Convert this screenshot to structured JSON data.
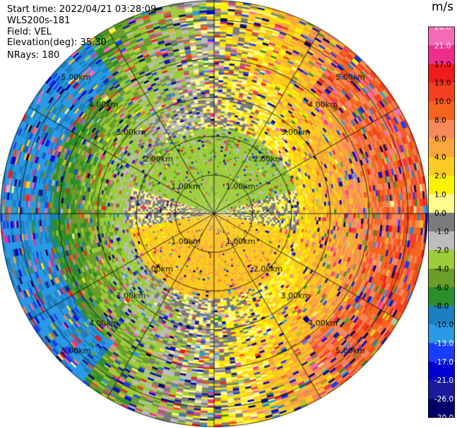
{
  "header": {
    "start_time": "Start time: 2022/04/21 03:28:09",
    "instrument": "WLS200s-181",
    "field": "Field: VEL",
    "elevation": "Elevation(deg): 35.30",
    "nrays": "NRays: 180"
  },
  "colorbar": {
    "unit": "m/s",
    "ticks": [
      "26.0",
      "21.0",
      "17.0",
      "13.0",
      "10.0",
      "8.0",
      "6.0",
      "4.0",
      "2.0",
      "1.0",
      "0.0",
      "-1.0",
      "-2.0",
      "-4.0",
      "-6.0",
      "-8.0",
      "-10.0",
      "-13.0",
      "-17.0",
      "-21.0",
      "-26.0",
      "-30.0"
    ],
    "bin_colors": [
      "#f56ab4",
      "#ee2d8c",
      "#ef1a1a",
      "#f44020",
      "#f5651f",
      "#f7885a",
      "#f9a73a",
      "#fbcb21",
      "#fff200",
      "#fffa8c",
      "#7a7a7a",
      "#bcbcbc",
      "#9ccd3a",
      "#6a9d2a",
      "#2a8f2a",
      "#1d7fbf",
      "#2a9ae6",
      "#1a3cff",
      "#0000d0",
      "#1a1a9a",
      "#000066"
    ]
  },
  "chart_data": {
    "type": "heatmap",
    "projection": "polar PPI",
    "field": "VEL",
    "units": "m/s",
    "range_rings_km": [
      1,
      2,
      3,
      4,
      5
    ],
    "ring_labels": [
      "1.00km",
      "2.00km",
      "3.00km",
      "4.00km",
      "5.00km"
    ],
    "azimuth_spokes_deg": [
      0,
      30,
      60,
      90,
      120,
      150,
      180,
      210,
      240,
      270,
      300,
      330
    ],
    "nrays": 180,
    "max_range_km": 5.5,
    "color_range": [
      -30,
      30
    ],
    "velocity_pattern_note_values": {
      "near_field_west_velocity_ms": -3.0,
      "near_field_east_velocity_ms": 2.5,
      "far_field_west_velocity_ms": -10.0,
      "far_field_east_velocity_ms": 8.0
    }
  }
}
